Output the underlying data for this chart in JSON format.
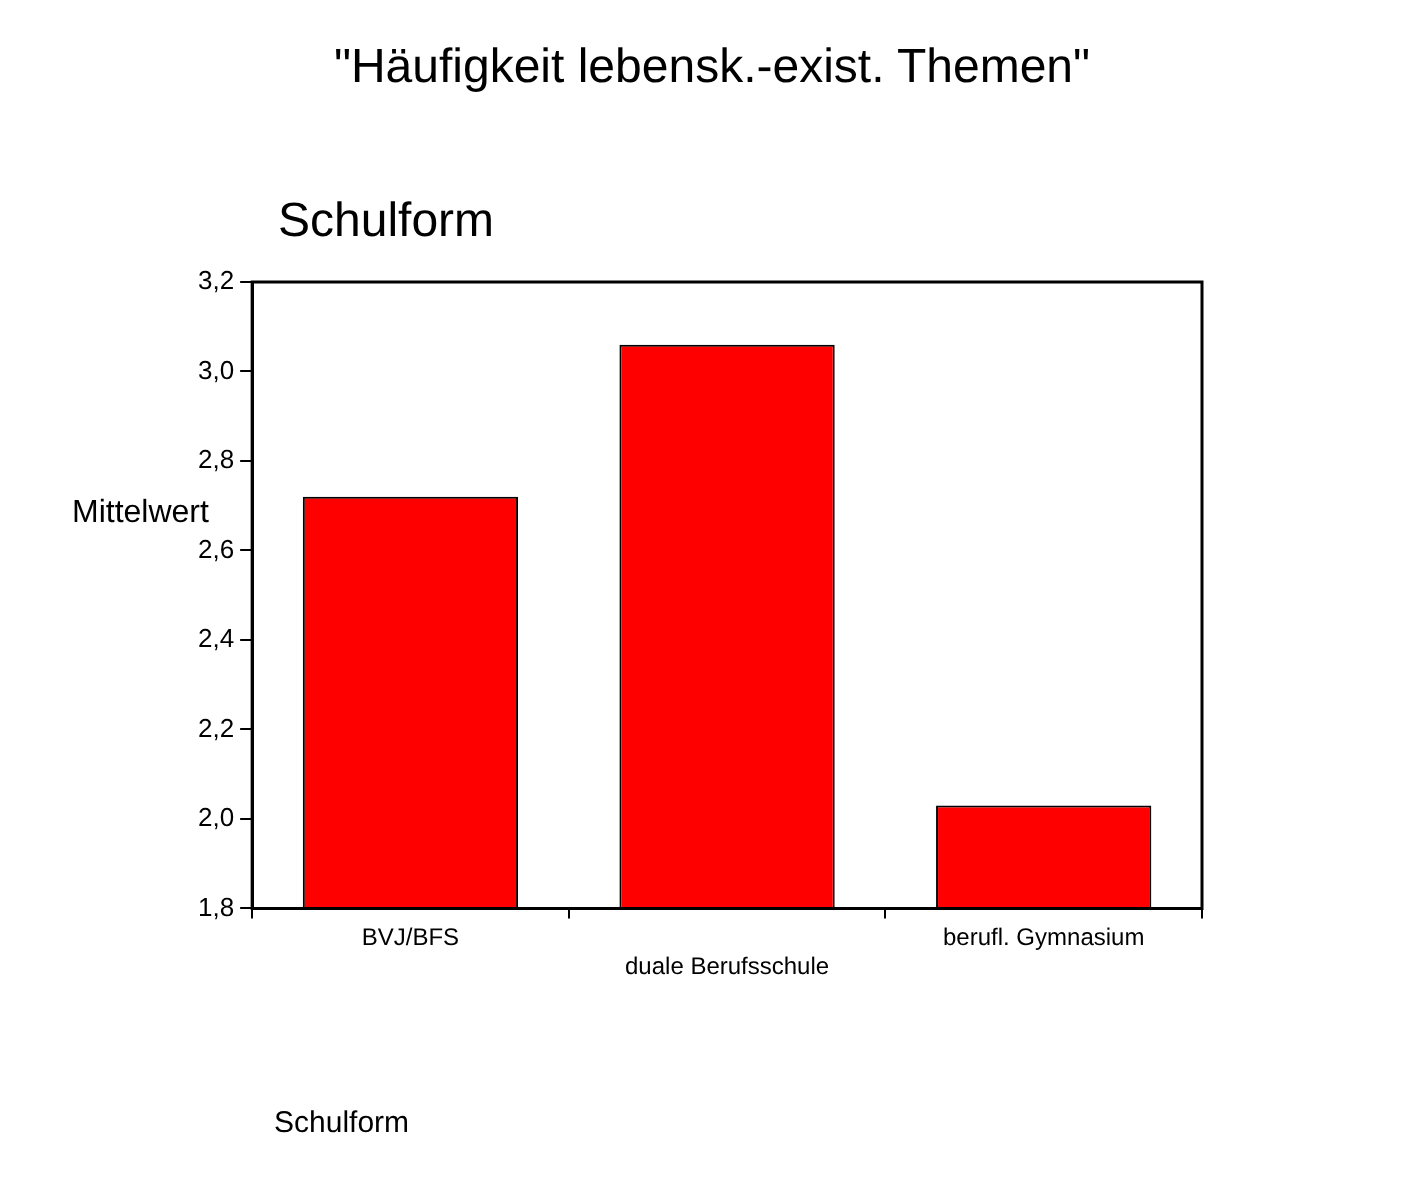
{
  "chart_data": {
    "type": "bar",
    "title": "\"Häufigkeit lebensk.-exist. Themen\"",
    "subtitle": "Schulform",
    "annotations": [
      "Schulform"
    ],
    "ylabel": "Mittelwert",
    "categories": [
      "BVJ/BFS",
      "duale Berufsschule",
      "berufl. Gymnasium"
    ],
    "values": [
      2.72,
      3.06,
      2.03
    ],
    "color": "#ff0000",
    "ylim": [
      1.8,
      3.2
    ],
    "yticks": [
      {
        "value": 1.8,
        "label": "1,8"
      },
      {
        "value": 2.0,
        "label": "2,0"
      },
      {
        "value": 2.2,
        "label": "2,2"
      },
      {
        "value": 2.4,
        "label": "2,4"
      },
      {
        "value": 2.6,
        "label": "2,6"
      },
      {
        "value": 2.8,
        "label": "2,8"
      },
      {
        "value": 3.0,
        "label": "3,0"
      },
      {
        "value": 3.2,
        "label": "3,2"
      }
    ],
    "grid": false,
    "legend": false
  }
}
